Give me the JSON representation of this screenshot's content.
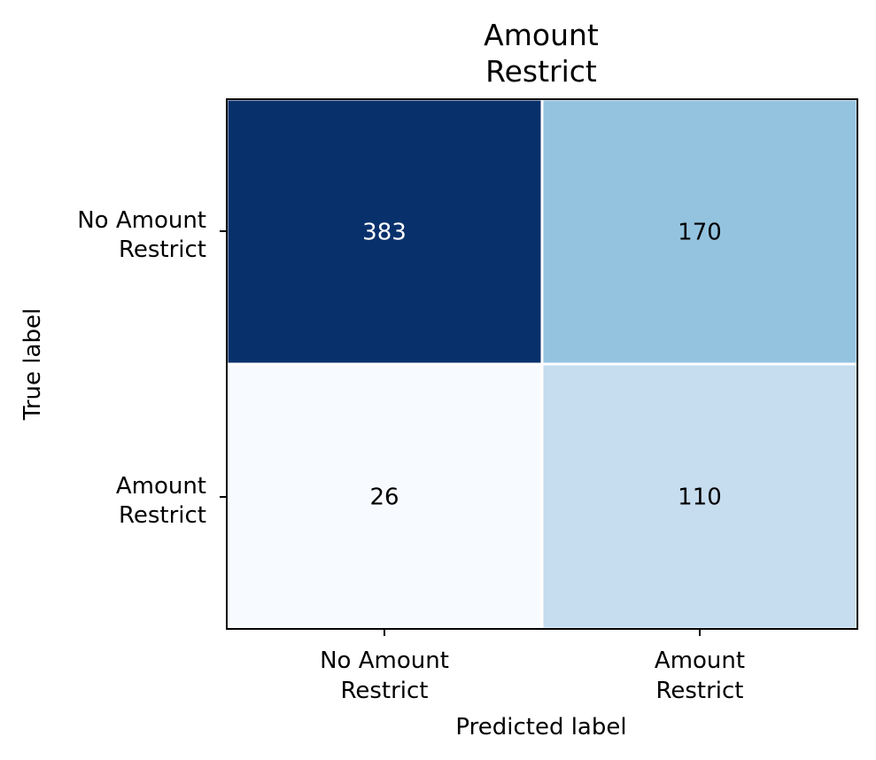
{
  "chart_data": {
    "type": "heatmap",
    "title": [
      "Amount",
      "Restrict"
    ],
    "xlabel": "Predicted label",
    "ylabel": "True label",
    "x_categories": [
      [
        "No Amount",
        "Restrict"
      ],
      [
        "Amount",
        "Restrict"
      ]
    ],
    "y_categories": [
      [
        "No Amount",
        "Restrict"
      ],
      [
        "Amount",
        "Restrict"
      ]
    ],
    "values": [
      [
        383,
        170
      ],
      [
        26,
        110
      ]
    ],
    "colormap": "Blues",
    "value_range": [
      26,
      383
    ]
  },
  "colors": {
    "cells": [
      [
        "#08306b",
        "#94c3e0"
      ],
      [
        "#f7fbff",
        "#c6dcef"
      ]
    ],
    "text_dark": "#000000",
    "text_light": "#ffffff",
    "cell_border": "#ffffff"
  }
}
